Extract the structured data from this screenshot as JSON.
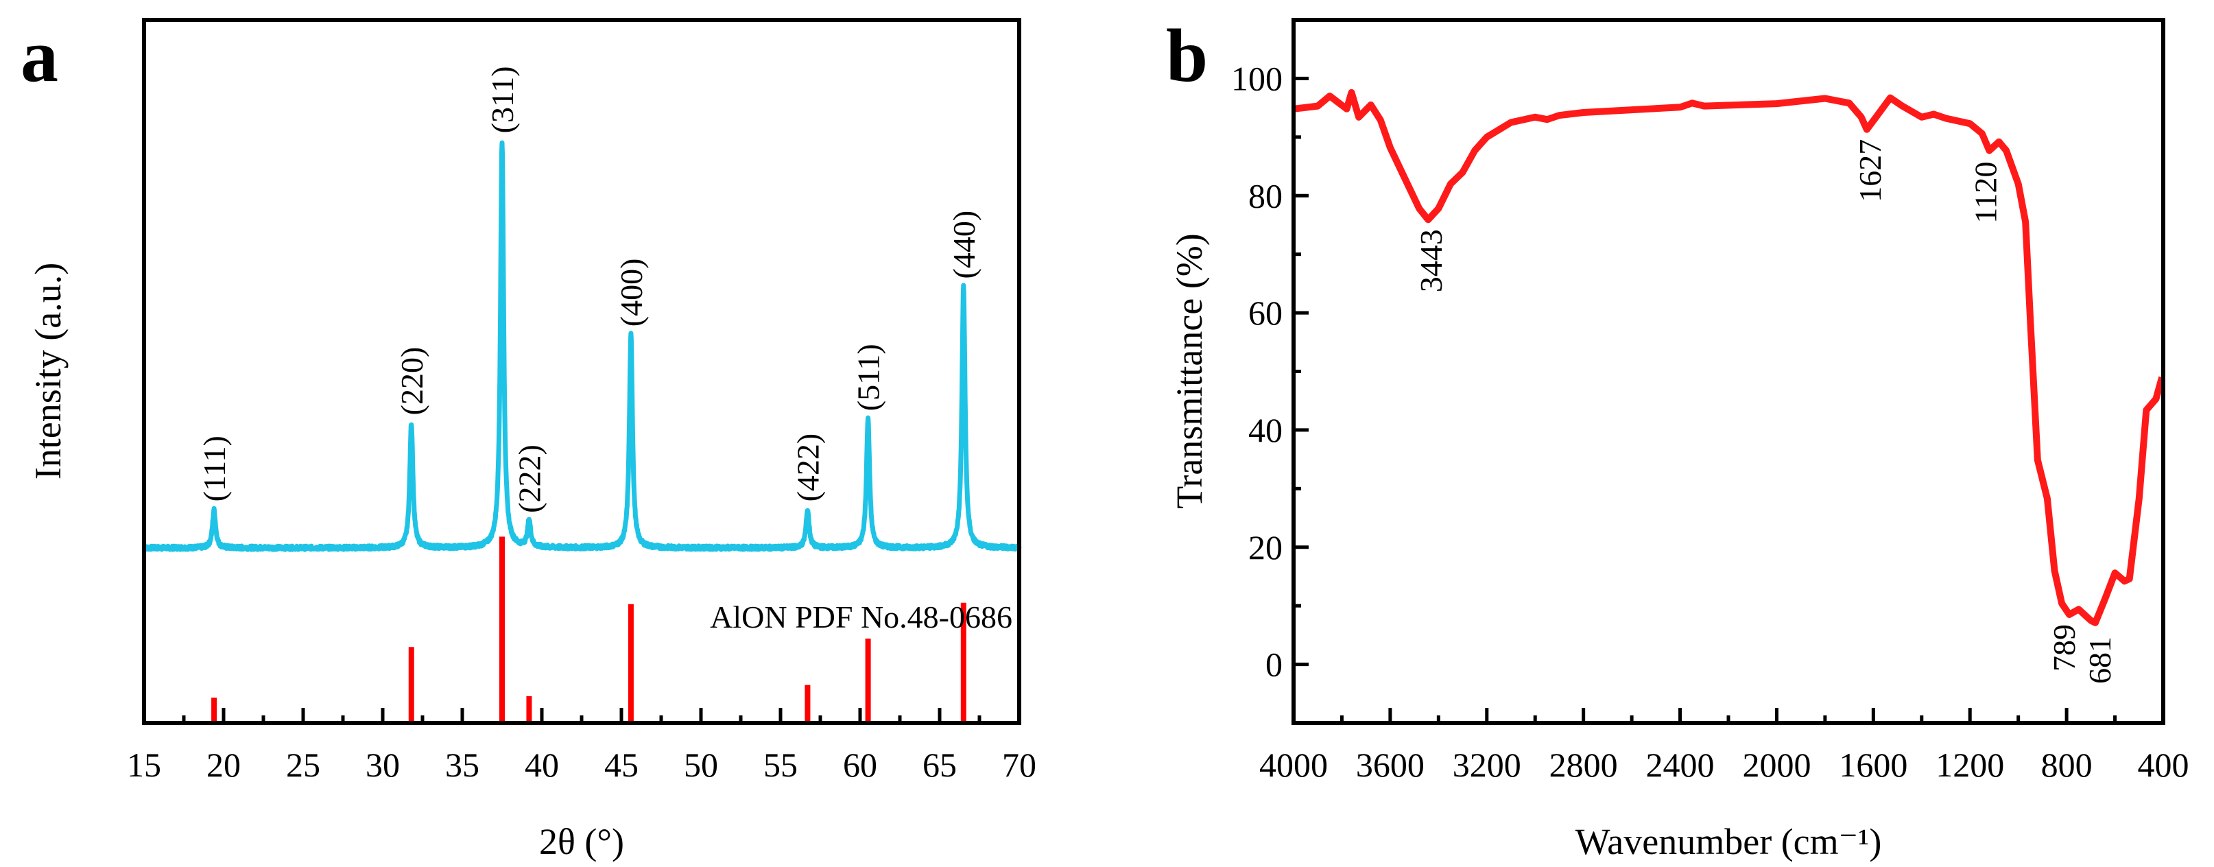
{
  "chart_data": [
    {
      "panel_label": "a",
      "type": "line",
      "xlabel": "2θ (°)",
      "ylabel": "Intensity (a.u.)",
      "xlim": [
        15,
        70
      ],
      "ylim": [
        0,
        100
      ],
      "xticks": [
        15,
        20,
        25,
        30,
        35,
        40,
        45,
        50,
        55,
        60,
        65,
        70
      ],
      "series_color": "#1ec3e6",
      "xrd_baseline": 24.9,
      "peaks": [
        {
          "label": "(111)",
          "two_theta": 19.4,
          "height": 30.3
        },
        {
          "label": "(220)",
          "two_theta": 31.8,
          "height": 42.6
        },
        {
          "label": "(311)",
          "two_theta": 37.5,
          "height": 82.7
        },
        {
          "label": "(222)",
          "two_theta": 39.2,
          "height": 28.7
        },
        {
          "label": "(400)",
          "two_theta": 45.6,
          "height": 55.2
        },
        {
          "label": "(422)",
          "two_theta": 56.7,
          "height": 30.3
        },
        {
          "label": "(511)",
          "two_theta": 60.5,
          "height": 43.2
        },
        {
          "label": "(440)",
          "two_theta": 66.5,
          "height": 62.0
        }
      ],
      "reference": {
        "label": "AlON PDF No.48-0686",
        "color": "#ff0000",
        "sticks": [
          {
            "two_theta": 19.4,
            "value": 3.6
          },
          {
            "two_theta": 31.8,
            "value": 10.8
          },
          {
            "two_theta": 37.5,
            "value": 26.5
          },
          {
            "two_theta": 39.2,
            "value": 3.8
          },
          {
            "two_theta": 45.6,
            "value": 16.9
          },
          {
            "two_theta": 56.7,
            "value": 5.4
          },
          {
            "two_theta": 60.5,
            "value": 12.0
          },
          {
            "two_theta": 66.5,
            "value": 17.1
          }
        ]
      }
    },
    {
      "panel_label": "b",
      "type": "line",
      "xlabel": "Wavenumber (cm⁻¹)",
      "ylabel": "Transmittance (%)",
      "xlim": [
        4000,
        400
      ],
      "ylim": [
        -10,
        110
      ],
      "xticks": [
        4000,
        3600,
        3200,
        2800,
        2400,
        2000,
        1600,
        1200,
        800,
        400
      ],
      "yticks": [
        0,
        20,
        40,
        60,
        80,
        100
      ],
      "series_color": "#ff1a1a",
      "x": [
        4000,
        3900,
        3850,
        3780,
        3760,
        3730,
        3680,
        3640,
        3600,
        3540,
        3480,
        3443,
        3400,
        3350,
        3300,
        3250,
        3200,
        3100,
        3000,
        2950,
        2900,
        2800,
        2400,
        2350,
        2300,
        2000,
        1800,
        1700,
        1650,
        1627,
        1580,
        1530,
        1480,
        1400,
        1350,
        1300,
        1200,
        1150,
        1120,
        1080,
        1050,
        1000,
        970,
        950,
        920,
        880,
        850,
        820,
        789,
        750,
        700,
        681,
        640,
        600,
        560,
        540,
        500,
        470,
        430,
        405
      ],
      "y": [
        94.8,
        95.3,
        97.0,
        94.8,
        97.6,
        93.4,
        95.5,
        92.9,
        88.2,
        83.0,
        77.8,
        75.9,
        77.8,
        82.0,
        84.0,
        87.7,
        90.0,
        92.5,
        93.4,
        93.0,
        93.7,
        94.2,
        95.1,
        95.8,
        95.3,
        95.7,
        96.6,
        95.8,
        93.4,
        91.3,
        93.9,
        96.7,
        95.3,
        93.4,
        93.9,
        93.2,
        92.3,
        90.6,
        87.7,
        89.2,
        87.7,
        82.0,
        75.5,
        58.5,
        34.9,
        28.3,
        16.0,
        10.4,
        8.5,
        9.4,
        7.5,
        7.1,
        11.3,
        15.6,
        14.2,
        14.6,
        28.3,
        43.4,
        45.3,
        49.0
      ],
      "annotations": [
        {
          "text": "3443",
          "x": 3443,
          "y": 75.9
        },
        {
          "text": "1627",
          "x": 1627,
          "y": 91.3
        },
        {
          "text": "1120",
          "x": 1120,
          "y": 87.7
        },
        {
          "text": "789",
          "x": 789,
          "y": 8.5
        },
        {
          "text": "681",
          "x": 681,
          "y": 7.1
        }
      ]
    }
  ]
}
